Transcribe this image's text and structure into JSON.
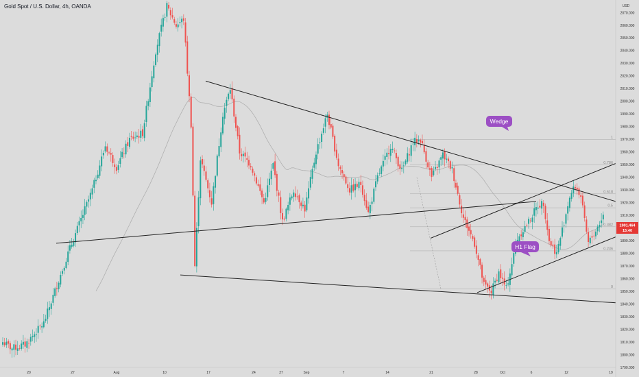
{
  "chart_data": {
    "type": "candlestick",
    "title": "Gold Spot / U.S. Dollar, 4h, OANDA",
    "currency": "USD",
    "ylim": [
      1790,
      2080
    ],
    "y_ticks": [
      1790,
      1800,
      1810,
      1820,
      1830,
      1840,
      1850,
      1860,
      1870,
      1880,
      1890,
      1900,
      1910,
      1920,
      1930,
      1940,
      1950,
      1960,
      1970,
      1980,
      1990,
      2000,
      2010,
      2020,
      2030,
      2040,
      2050,
      2060,
      2070
    ],
    "x_ticks": [
      "20",
      "27",
      "Aug",
      "10",
      "17",
      "24",
      "27",
      "Sep",
      "7",
      "14",
      "21",
      "28",
      "Oct",
      "6",
      "12",
      "19"
    ],
    "last_price": "1901.464",
    "countdown": "15:40",
    "anchors": [
      [
        0,
        1810
      ],
      [
        5,
        1805
      ],
      [
        12,
        1808
      ],
      [
        22,
        1825
      ],
      [
        35,
        1880
      ],
      [
        48,
        1930
      ],
      [
        55,
        1965
      ],
      [
        61,
        1948
      ],
      [
        68,
        1970
      ],
      [
        75,
        1975
      ],
      [
        82,
        2040
      ],
      [
        88,
        2075
      ],
      [
        93,
        2060
      ],
      [
        97,
        2065
      ],
      [
        101,
        1982
      ],
      [
        103,
        1870
      ],
      [
        106,
        1955
      ],
      [
        112,
        1920
      ],
      [
        118,
        1990
      ],
      [
        122,
        2010
      ],
      [
        127,
        1960
      ],
      [
        133,
        1950
      ],
      [
        140,
        1920
      ],
      [
        145,
        1950
      ],
      [
        150,
        1905
      ],
      [
        156,
        1930
      ],
      [
        162,
        1915
      ],
      [
        168,
        1960
      ],
      [
        174,
        1990
      ],
      [
        180,
        1950
      ],
      [
        186,
        1930
      ],
      [
        192,
        1935
      ],
      [
        196,
        1912
      ],
      [
        201,
        1940
      ],
      [
        208,
        1965
      ],
      [
        214,
        1945
      ],
      [
        220,
        1968
      ],
      [
        224,
        1970
      ],
      [
        230,
        1940
      ],
      [
        236,
        1958
      ],
      [
        241,
        1946
      ],
      [
        247,
        1908
      ],
      [
        253,
        1888
      ],
      [
        258,
        1855
      ],
      [
        262,
        1850
      ],
      [
        266,
        1865
      ],
      [
        270,
        1852
      ],
      [
        276,
        1892
      ],
      [
        282,
        1905
      ],
      [
        287,
        1918
      ],
      [
        290,
        1920
      ],
      [
        293,
        1890
      ],
      [
        297,
        1880
      ],
      [
        301,
        1905
      ],
      [
        304,
        1925
      ],
      [
        307,
        1933
      ],
      [
        310,
        1925
      ],
      [
        312,
        1905
      ],
      [
        314,
        1888
      ],
      [
        318,
        1898
      ],
      [
        322,
        1910
      ]
    ],
    "fib_levels": [
      {
        "label": "1",
        "value": 1970
      },
      {
        "label": "0.786",
        "value": 1950
      },
      {
        "label": "0.618",
        "value": 1927
      },
      {
        "label": "0.5",
        "value": 1916
      },
      {
        "label": "0.382",
        "value": 1901
      },
      {
        "label": "0.236",
        "value": 1882
      },
      {
        "label": "0",
        "value": 1852
      }
    ],
    "annotations": [
      {
        "text": "Wedge",
        "color": "#9c4fc4"
      },
      {
        "text": "H1 Flag",
        "color": "#9c4fc4"
      }
    ],
    "colors": {
      "up": "#26a69a",
      "down": "#ef5350",
      "trendline": "#222222",
      "ma": "#b0b0b0",
      "price_tag": "#e53935"
    }
  }
}
